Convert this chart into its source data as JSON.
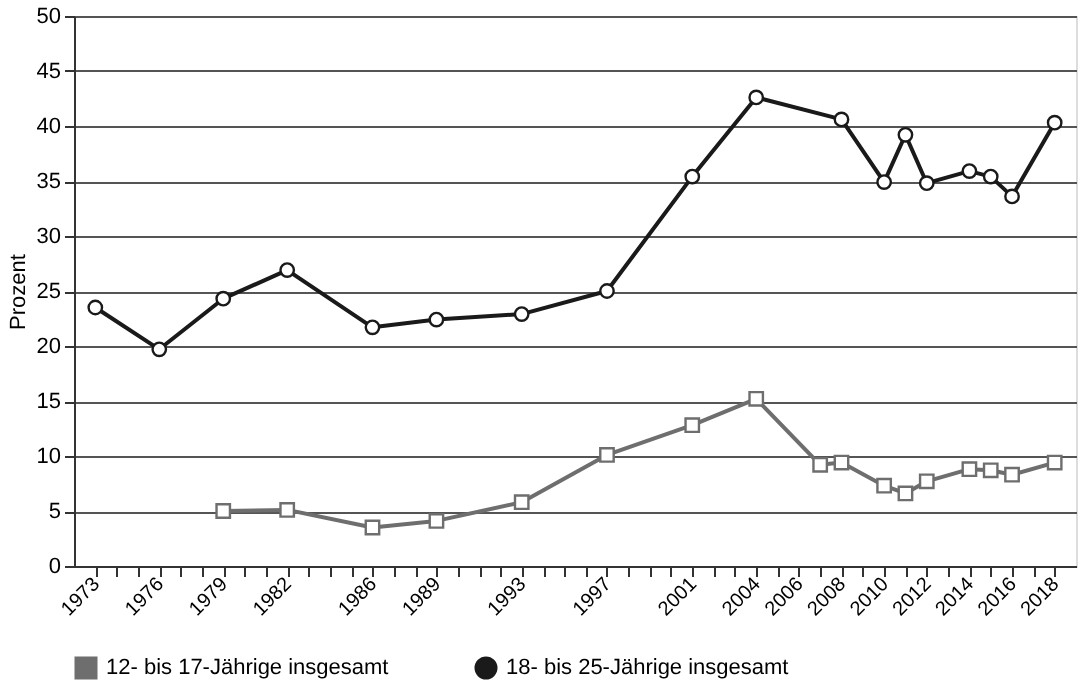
{
  "chart_data": {
    "type": "line",
    "ylabel": "Prozent",
    "xlim": [
      1972,
      2019
    ],
    "ylim": [
      0,
      50
    ],
    "yticks": [
      0,
      5,
      10,
      15,
      20,
      25,
      30,
      35,
      40,
      45,
      50
    ],
    "xticks": [
      1973,
      {
        "value": 1974,
        "label": null
      },
      {
        "value": 1975,
        "label": null
      },
      1976,
      {
        "value": 1977,
        "label": null
      },
      {
        "value": 1978,
        "label": null
      },
      1979,
      {
        "value": 1980,
        "label": null
      },
      {
        "value": 1981,
        "label": null
      },
      1982,
      {
        "value": 1983,
        "label": null
      },
      {
        "value": 1984,
        "label": null
      },
      {
        "value": 1985,
        "label": null
      },
      1986,
      {
        "value": 1987,
        "label": null
      },
      {
        "value": 1988,
        "label": null
      },
      1989,
      {
        "value": 1990,
        "label": null
      },
      {
        "value": 1991,
        "label": null
      },
      {
        "value": 1992,
        "label": null
      },
      1993,
      {
        "value": 1994,
        "label": null
      },
      {
        "value": 1995,
        "label": null
      },
      {
        "value": 1996,
        "label": null
      },
      1997,
      {
        "value": 1998,
        "label": null
      },
      {
        "value": 1999,
        "label": null
      },
      {
        "value": 2000,
        "label": null
      },
      2001,
      {
        "value": 2002,
        "label": null
      },
      {
        "value": 2003,
        "label": null
      },
      2004,
      {
        "value": 2005,
        "label": null
      },
      2006,
      {
        "value": 2007,
        "label": null
      },
      2008,
      {
        "value": 2009,
        "label": null
      },
      2010,
      {
        "value": 2011,
        "label": null
      },
      2012,
      {
        "value": 2013,
        "label": null
      },
      2014,
      {
        "value": 2015,
        "label": null
      },
      2016,
      {
        "value": 2017,
        "label": null
      },
      2018
    ],
    "grid": "y",
    "legend": "bottom",
    "line_style": "solid",
    "series": [
      {
        "name": "12- bis 17-Jährige insgesamt",
        "color": "#6e6e6e",
        "marker": "square",
        "x": [
          1979,
          1982,
          1986,
          1989,
          1993,
          1997,
          2001,
          2004,
          2007,
          2008,
          2010,
          2011,
          2012,
          2014,
          2015,
          2016,
          2018
        ],
        "values": [
          5.0,
          5.1,
          3.5,
          4.1,
          5.8,
          10.1,
          12.8,
          15.2,
          9.2,
          9.4,
          7.3,
          6.6,
          7.7,
          8.8,
          8.7,
          8.3,
          9.4
        ]
      },
      {
        "name": "18- bis 25-Jährige insgesamt",
        "color": "#1a1a1a",
        "marker": "circle",
        "x": [
          1973,
          1976,
          1979,
          1982,
          1986,
          1989,
          1993,
          1997,
          2001,
          2004,
          2008,
          2010,
          2011,
          2012,
          2014,
          2015,
          2016,
          2018
        ],
        "values": [
          23.5,
          19.7,
          24.3,
          26.9,
          21.7,
          22.4,
          22.9,
          25.0,
          35.4,
          42.6,
          40.6,
          34.9,
          39.2,
          34.8,
          35.9,
          35.4,
          33.6,
          40.3
        ]
      }
    ]
  }
}
